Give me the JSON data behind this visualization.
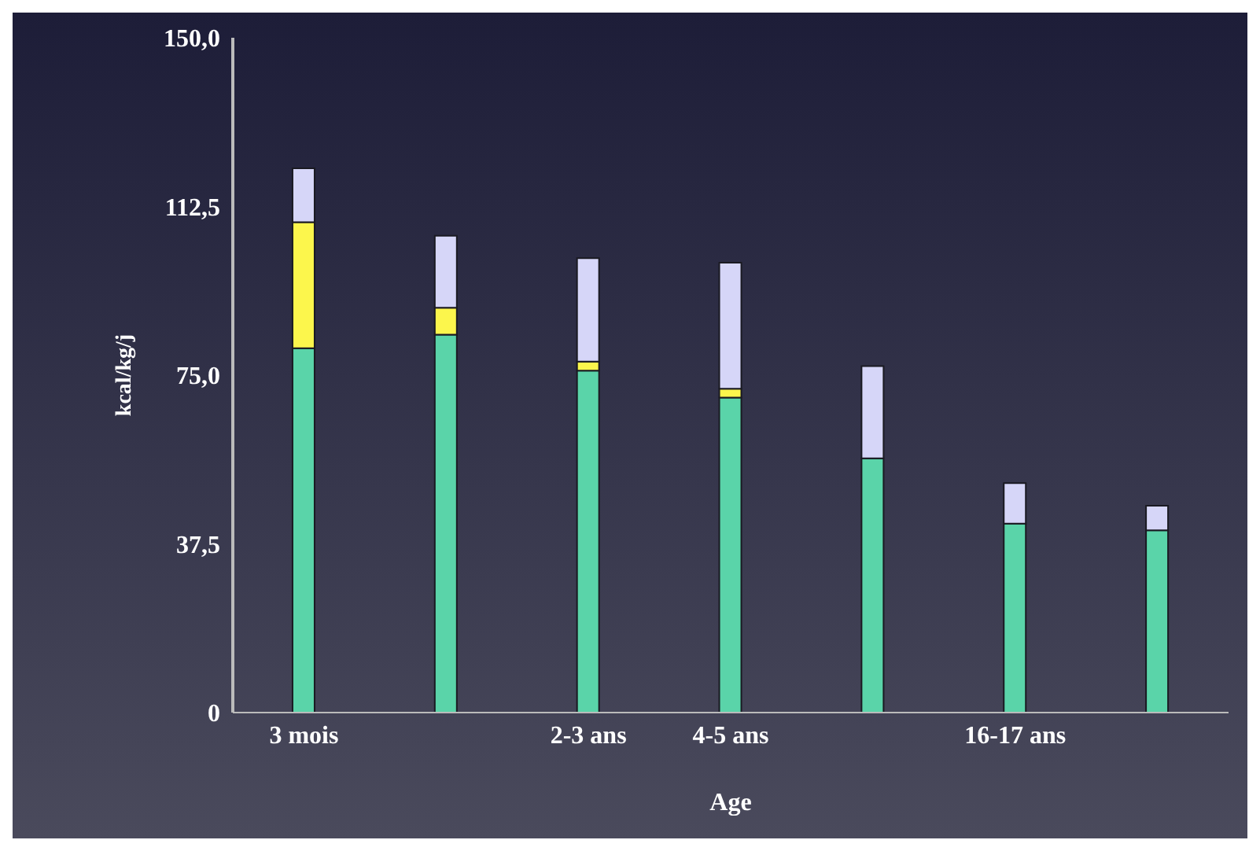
{
  "chart_data": {
    "type": "bar",
    "stacked": true,
    "xlabel": "Age",
    "ylabel": "kcal/kg/j",
    "categories": [
      "3 mois",
      null,
      "2-3 ans",
      "4-5 ans",
      null,
      "16-17 ans",
      null
    ],
    "series": [
      {
        "color": "#5ad4a9",
        "values": [
          81,
          84,
          76,
          70,
          56.5,
          42,
          40.5
        ]
      },
      {
        "color": "#fcf64c",
        "values": [
          28,
          6,
          2,
          2,
          null,
          null,
          null
        ]
      },
      {
        "color": "#d6d6f8",
        "values": [
          12,
          16,
          23,
          28,
          20.5,
          9,
          5.5
        ]
      }
    ],
    "ylim": [
      0,
      150
    ],
    "yticks": [
      0,
      {
        "value": 37.5,
        "label": "37,5"
      },
      {
        "value": 75,
        "label": "75,0"
      },
      {
        "value": 112.5,
        "label": "112,5"
      },
      {
        "value": 150,
        "label": "150,0"
      }
    ],
    "grid": false,
    "legend": false
  }
}
